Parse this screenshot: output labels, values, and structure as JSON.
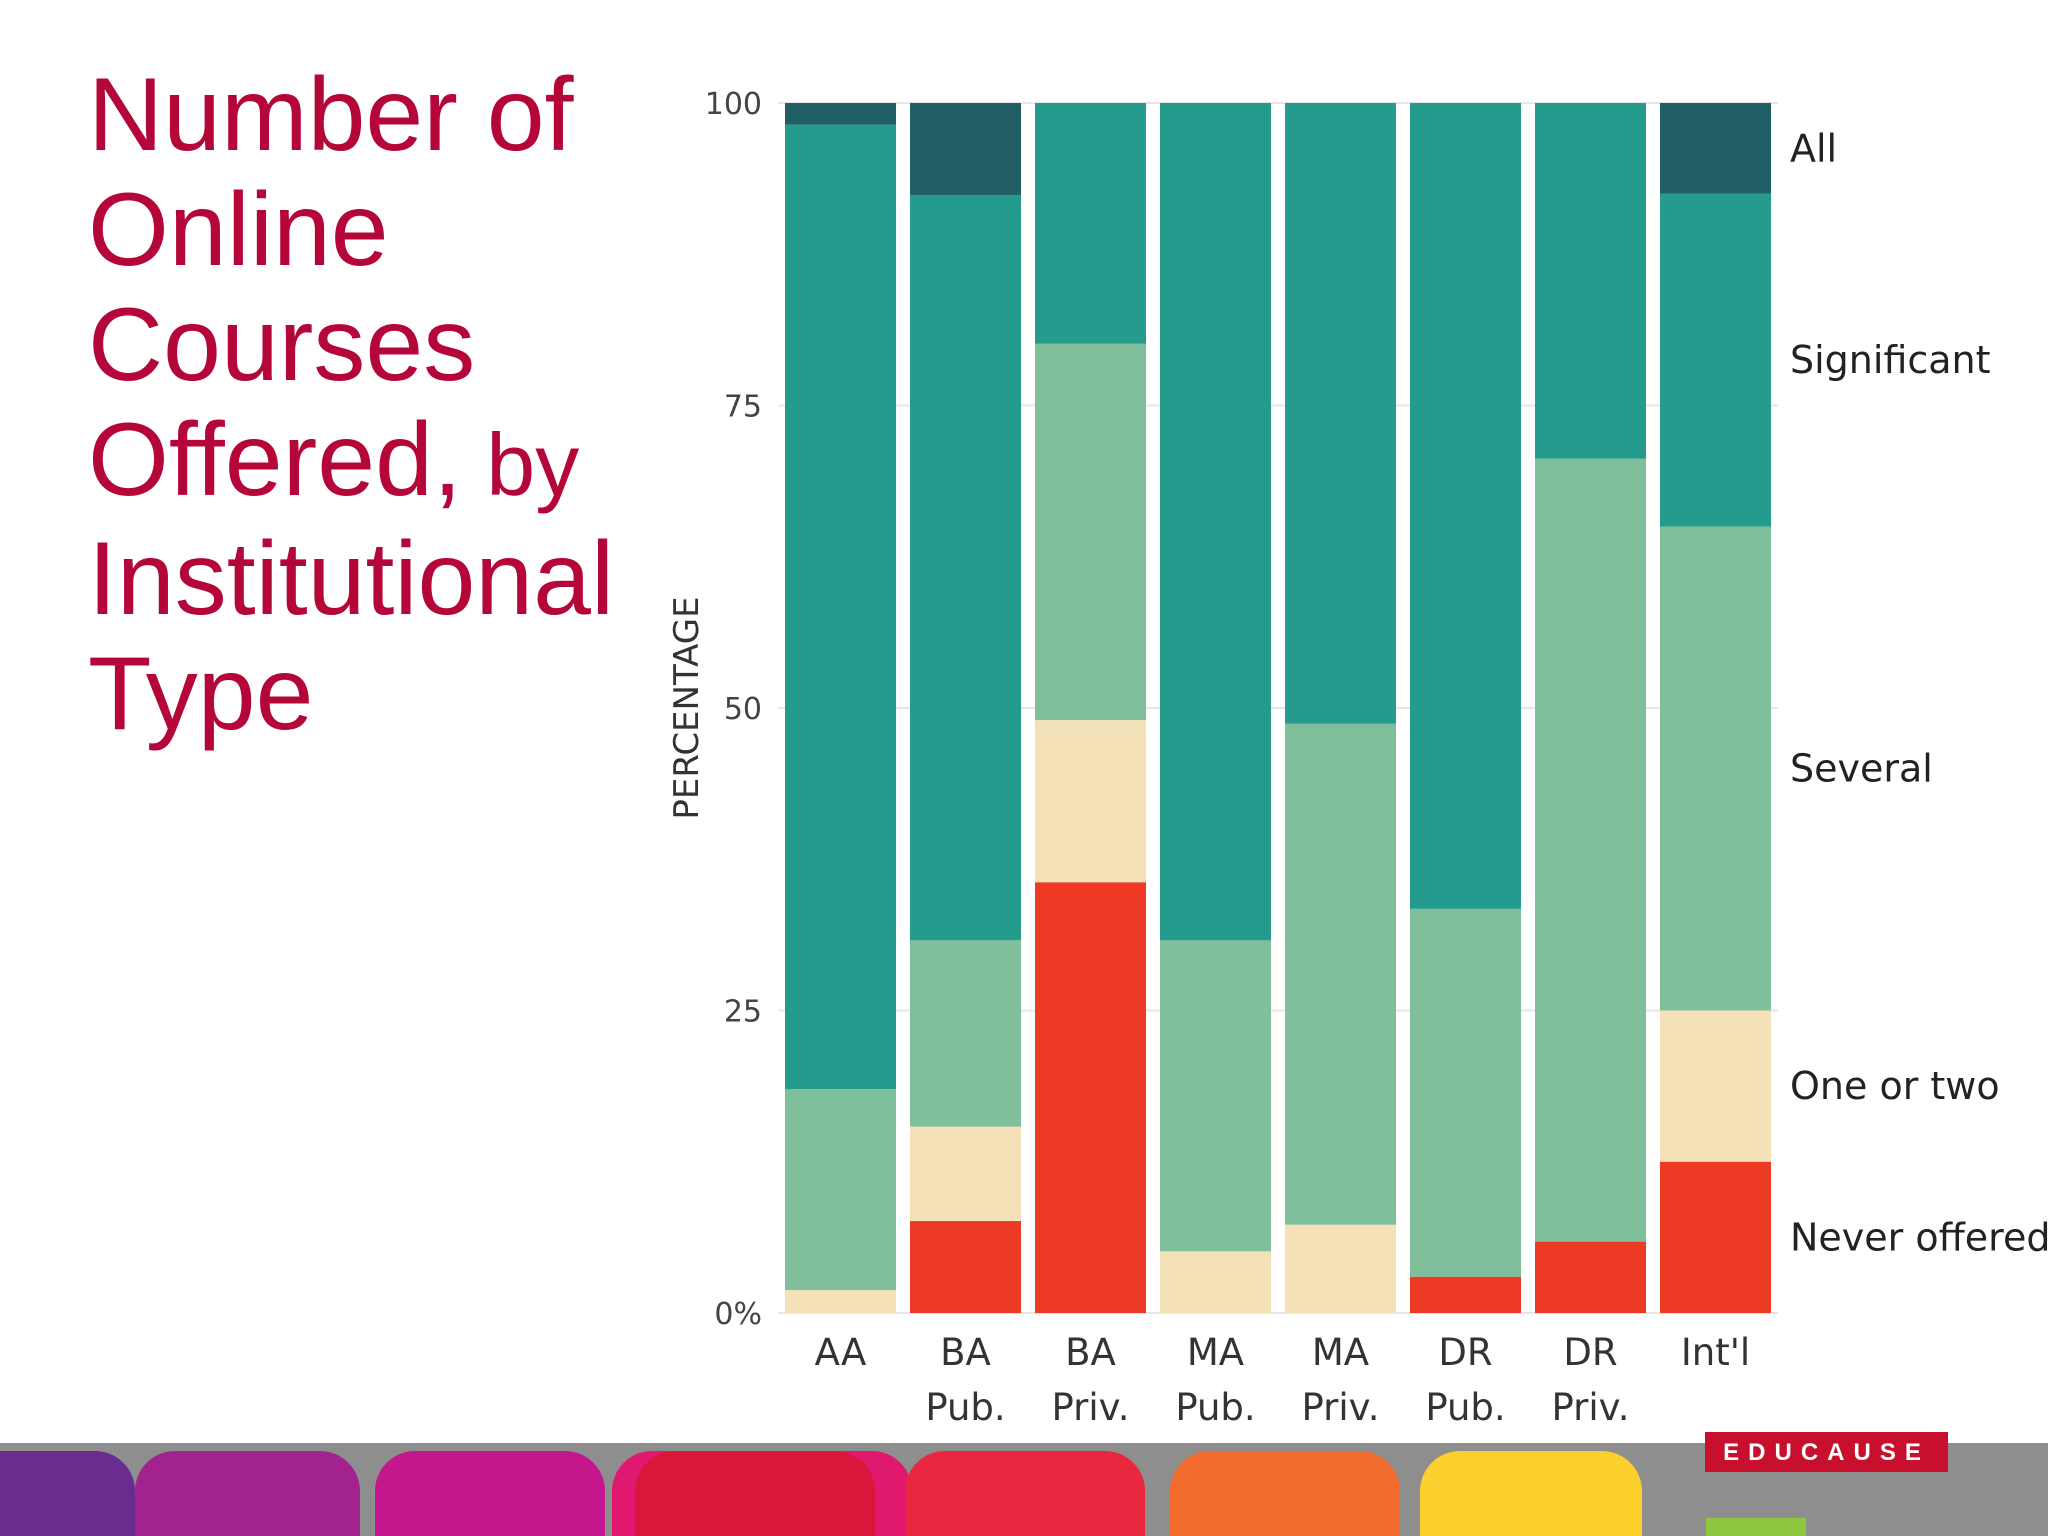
{
  "slide": {
    "title_main": "Number of Online Courses Offered,",
    "title_by": " by",
    "title_rest": " Institutional Type",
    "brand": "EDUCAUSE"
  },
  "chart_data": {
    "type": "bar",
    "stacked": true,
    "title": "",
    "xlabel": "",
    "ylabel": "PERCENTAGE",
    "ylim": [
      0,
      100
    ],
    "yticks": [
      "0%",
      "25",
      "50",
      "75",
      "100"
    ],
    "categories": [
      [
        "AA"
      ],
      [
        "BA",
        "Pub."
      ],
      [
        "BA",
        "Priv."
      ],
      [
        "MA",
        "Pub."
      ],
      [
        "MA",
        "Priv."
      ],
      [
        "DR",
        "Pub."
      ],
      [
        "DR",
        "Priv."
      ],
      [
        "Int'l"
      ]
    ],
    "series": [
      {
        "name": "Never offered",
        "color": "#ec3a25",
        "values": [
          0,
          7.6,
          35.6,
          0,
          0,
          3.0,
          5.9,
          12.5
        ]
      },
      {
        "name": "One or two",
        "color": "#f4e1b7",
        "values": [
          1.9,
          7.8,
          13.4,
          5.1,
          7.3,
          0,
          0,
          12.5
        ]
      },
      {
        "name": "Several",
        "color": "#7fbf9c",
        "values": [
          16.6,
          15.4,
          31.1,
          25.7,
          41.4,
          30.4,
          64.7,
          40.0
        ]
      },
      {
        "name": "Significant",
        "color": "#249b8d",
        "values": [
          79.7,
          61.6,
          19.9,
          69.2,
          51.3,
          66.6,
          29.4,
          27.5
        ]
      },
      {
        "name": "All",
        "color": "#1f5f65",
        "values": [
          1.8,
          7.6,
          0,
          0,
          0,
          0,
          0,
          7.5
        ]
      }
    ],
    "legend": {
      "placement": "right",
      "entries": [
        "All",
        "Significant",
        "Several",
        "One or two",
        "Never offered"
      ]
    },
    "grid": true
  }
}
